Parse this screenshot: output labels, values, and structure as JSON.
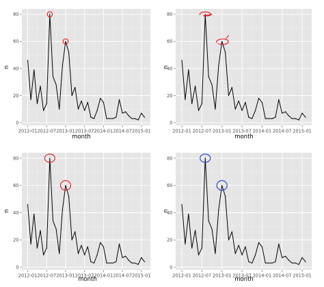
{
  "colors": {
    "panel_background": "#e5e5e5",
    "grid": "#ffffff",
    "series": "#000000",
    "red_marker": "#e41a1c",
    "blue_marker": "#1f3fcc"
  },
  "chart_data": [
    {
      "type": "line",
      "panel": "top-left",
      "xlabel": "month",
      "ylabel": "n",
      "x_tick_labels": [
        "2012-01",
        "2012-07",
        "2013-01",
        "2013-07",
        "2014-01",
        "2014-07",
        "2015-01"
      ],
      "y_tick_labels": [
        "0",
        "20",
        "40",
        "60",
        "80"
      ],
      "ylim": [
        -2,
        84
      ],
      "grid": true,
      "legend": "none",
      "x": [
        "2012-01",
        "2012-02",
        "2012-03",
        "2012-04",
        "2012-05",
        "2012-06",
        "2012-07",
        "2012-08",
        "2012-09",
        "2012-10",
        "2012-11",
        "2012-12",
        "2013-01",
        "2013-02",
        "2013-03",
        "2013-04",
        "2013-05",
        "2013-06",
        "2013-07",
        "2013-08",
        "2013-09",
        "2013-10",
        "2013-11",
        "2013-12",
        "2014-01",
        "2014-02",
        "2014-03",
        "2014-04",
        "2014-05",
        "2014-06",
        "2014-07",
        "2014-08",
        "2014-09",
        "2014-10",
        "2014-11",
        "2014-12",
        "2015-01",
        "2015-02"
      ],
      "values": [
        46,
        17,
        39,
        14,
        27,
        9,
        14,
        80,
        34,
        28,
        10,
        42,
        60,
        52,
        20,
        26,
        10,
        16,
        9,
        15,
        4,
        3,
        9,
        18,
        15,
        3,
        3,
        3,
        4,
        17,
        7,
        8,
        5,
        3,
        3,
        2,
        7,
        4
      ],
      "annotations": [
        {
          "style": "small-circle",
          "color": "red",
          "at_x": "2012-08",
          "at_y": 80
        },
        {
          "style": "small-circle",
          "color": "red",
          "at_x": "2013-01",
          "at_y": 60
        }
      ]
    },
    {
      "type": "line",
      "panel": "top-right",
      "xlabel": "month",
      "ylabel": "n",
      "x_tick_labels": [
        "2012-01",
        "2012-07",
        "2013-01",
        "2013-07",
        "2014-01",
        "2014-07",
        "2015-01"
      ],
      "y_tick_labels": [
        "0",
        "20",
        "40",
        "60",
        "80"
      ],
      "ylim": [
        -2,
        84
      ],
      "grid": true,
      "legend": "none",
      "x": [
        "2012-01",
        "2012-02",
        "2012-03",
        "2012-04",
        "2012-05",
        "2012-06",
        "2012-07",
        "2012-08",
        "2012-09",
        "2012-10",
        "2012-11",
        "2012-12",
        "2013-01",
        "2013-02",
        "2013-03",
        "2013-04",
        "2013-05",
        "2013-06",
        "2013-07",
        "2013-08",
        "2013-09",
        "2013-10",
        "2013-11",
        "2013-12",
        "2014-01",
        "2014-02",
        "2014-03",
        "2014-04",
        "2014-05",
        "2014-06",
        "2014-07",
        "2014-08",
        "2014-09",
        "2014-10",
        "2014-11",
        "2014-12",
        "2015-01",
        "2015-02"
      ],
      "values": [
        46,
        17,
        39,
        14,
        27,
        9,
        14,
        80,
        34,
        28,
        10,
        42,
        60,
        52,
        20,
        26,
        10,
        16,
        9,
        15,
        4,
        3,
        9,
        18,
        15,
        3,
        3,
        3,
        4,
        17,
        7,
        8,
        5,
        3,
        3,
        2,
        7,
        4
      ],
      "annotations": [
        {
          "style": "hand-drawn-loop",
          "color": "red",
          "at_x": "2012-08",
          "at_y": 80
        },
        {
          "style": "hand-drawn-loop",
          "color": "red",
          "at_x": "2013-01",
          "at_y": 60
        }
      ]
    },
    {
      "type": "line",
      "panel": "bottom-left",
      "xlabel": "month",
      "ylabel": "n",
      "x_tick_labels": [
        "2012-01",
        "2012-07",
        "2013-01",
        "2013-07",
        "2014-01",
        "2014-07",
        "2015-01"
      ],
      "y_tick_labels": [
        "0",
        "20",
        "40",
        "60",
        "80"
      ],
      "ylim": [
        -2,
        84
      ],
      "grid": true,
      "legend": "none",
      "x": [
        "2012-01",
        "2012-02",
        "2012-03",
        "2012-04",
        "2012-05",
        "2012-06",
        "2012-07",
        "2012-08",
        "2012-09",
        "2012-10",
        "2012-11",
        "2012-12",
        "2013-01",
        "2013-02",
        "2013-03",
        "2013-04",
        "2013-05",
        "2013-06",
        "2013-07",
        "2013-08",
        "2013-09",
        "2013-10",
        "2013-11",
        "2013-12",
        "2014-01",
        "2014-02",
        "2014-03",
        "2014-04",
        "2014-05",
        "2014-06",
        "2014-07",
        "2014-08",
        "2014-09",
        "2014-10",
        "2014-11",
        "2014-12",
        "2015-01",
        "2015-02"
      ],
      "values": [
        46,
        17,
        39,
        14,
        27,
        9,
        14,
        80,
        34,
        28,
        10,
        42,
        60,
        52,
        20,
        26,
        10,
        16,
        9,
        15,
        4,
        3,
        9,
        18,
        15,
        3,
        3,
        3,
        4,
        17,
        7,
        8,
        5,
        3,
        3,
        2,
        7,
        4
      ],
      "annotations": [
        {
          "style": "ellipse",
          "color": "red",
          "at_x": "2012-08",
          "at_y": 80
        },
        {
          "style": "ellipse",
          "color": "red",
          "at_x": "2013-01",
          "at_y": 60
        }
      ]
    },
    {
      "type": "line",
      "panel": "bottom-right",
      "xlabel": "month",
      "ylabel": "n",
      "x_tick_labels": [
        "2012-01",
        "2012-07",
        "2013-01",
        "2013-07",
        "2014-01",
        "2014-07",
        "2015-01"
      ],
      "y_tick_labels": [
        "0",
        "20",
        "40",
        "60",
        "80"
      ],
      "ylim": [
        -2,
        84
      ],
      "grid": true,
      "legend": "none",
      "x": [
        "2012-01",
        "2012-02",
        "2012-03",
        "2012-04",
        "2012-05",
        "2012-06",
        "2012-07",
        "2012-08",
        "2012-09",
        "2012-10",
        "2012-11",
        "2012-12",
        "2013-01",
        "2013-02",
        "2013-03",
        "2013-04",
        "2013-05",
        "2013-06",
        "2013-07",
        "2013-08",
        "2013-09",
        "2013-10",
        "2013-11",
        "2013-12",
        "2014-01",
        "2014-02",
        "2014-03",
        "2014-04",
        "2014-05",
        "2014-06",
        "2014-07",
        "2014-08",
        "2014-09",
        "2014-10",
        "2014-11",
        "2014-12",
        "2015-01",
        "2015-02"
      ],
      "values": [
        46,
        17,
        39,
        14,
        27,
        9,
        14,
        80,
        34,
        28,
        10,
        42,
        60,
        52,
        20,
        26,
        10,
        16,
        9,
        15,
        4,
        3,
        9,
        18,
        15,
        3,
        3,
        3,
        4,
        17,
        7,
        8,
        5,
        3,
        3,
        2,
        7,
        4
      ],
      "annotations": [
        {
          "style": "ellipse",
          "color": "blue",
          "at_x": "2012-08",
          "at_y": 80
        },
        {
          "style": "ellipse",
          "color": "blue",
          "at_x": "2013-01",
          "at_y": 60
        }
      ]
    }
  ]
}
